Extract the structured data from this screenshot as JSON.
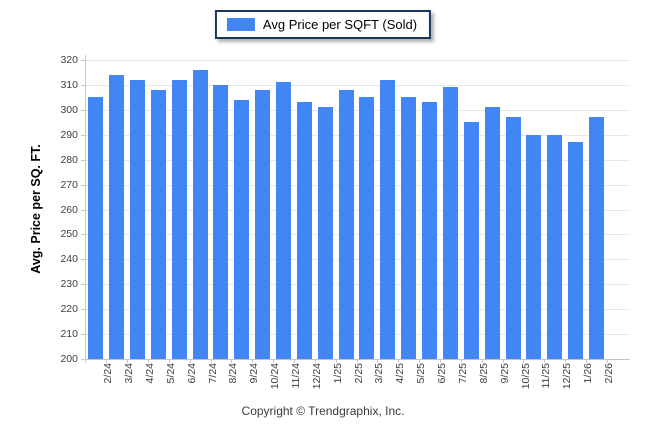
{
  "legend": {
    "label": "Avg Price per SQFT (Sold)",
    "swatch_color": "#4285f4",
    "border_color": "#17375e"
  },
  "chart_data": {
    "type": "bar",
    "title": "",
    "series_name": "Avg Price per SQFT (Sold)",
    "categories": [
      "2/24",
      "3/24",
      "4/24",
      "5/24",
      "6/24",
      "7/24",
      "8/24",
      "9/24",
      "10/24",
      "11/24",
      "12/24",
      "1/25",
      "2/25",
      "3/25",
      "4/25",
      "5/25",
      "6/25",
      "7/25",
      "8/25",
      "9/25",
      "10/25",
      "11/25",
      "12/25",
      "1/26",
      "2/26"
    ],
    "values": [
      305,
      314,
      312,
      308,
      312,
      316,
      310,
      304,
      308,
      311,
      303,
      301,
      308,
      305,
      312,
      305,
      303,
      309,
      295,
      301,
      297,
      290,
      290,
      287,
      297
    ],
    "xlabel": "",
    "ylabel": "Avg. Price per SQ. FT.",
    "ylim": [
      200,
      320
    ],
    "ytick_step": 10,
    "grid": true,
    "legend_position": "top-center",
    "bar_color": "#4285f4",
    "gridline_color": "#e9e9e9"
  },
  "footer": {
    "copyright": "Copyright © Trendgraphix, Inc."
  }
}
